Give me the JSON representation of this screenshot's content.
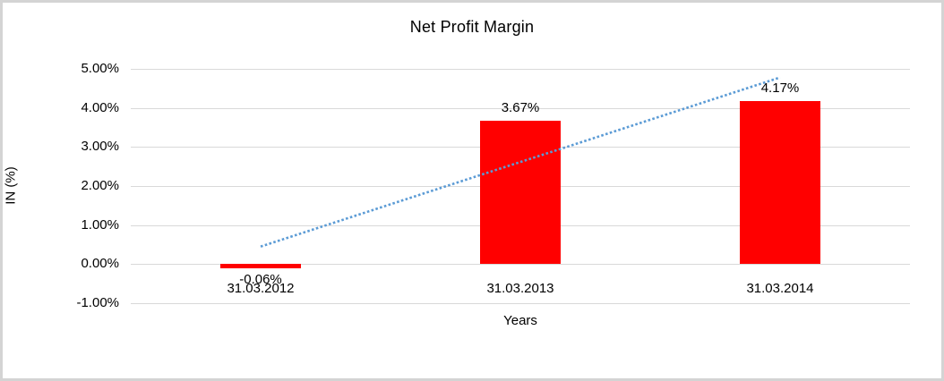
{
  "chart_data": {
    "type": "bar",
    "title": "Net Profit Margin",
    "xlabel": "Years",
    "ylabel": "IN (%)",
    "categories": [
      "31.03.2012",
      "31.03.2013",
      "31.03.2014"
    ],
    "series": [
      {
        "name": "Net Profit Margin",
        "values": [
          -0.06,
          3.67,
          4.17
        ]
      }
    ],
    "data_labels": [
      "-0.06%",
      "3.67%",
      "4.17%"
    ],
    "y_ticks": [
      {
        "value": 5,
        "label": "5.00%"
      },
      {
        "value": 4,
        "label": "4.00%"
      },
      {
        "value": 3,
        "label": "3.00%"
      },
      {
        "value": 2,
        "label": "2.00%"
      },
      {
        "value": 1,
        "label": "1.00%"
      },
      {
        "value": 0,
        "label": "0.00%"
      },
      {
        "value": -1,
        "label": "-1.00%"
      }
    ],
    "ylim": [
      -1,
      5
    ],
    "grid": true,
    "legend": false,
    "bar_color": "#ff0000",
    "gridline_color": "#d9d9d9",
    "trendline": {
      "type": "linear",
      "style": "dotted",
      "color": "#5b9bd5",
      "points": [
        {
          "category_index": 0,
          "value": 0.45
        },
        {
          "category_index": 2,
          "value": 4.78
        }
      ]
    }
  }
}
